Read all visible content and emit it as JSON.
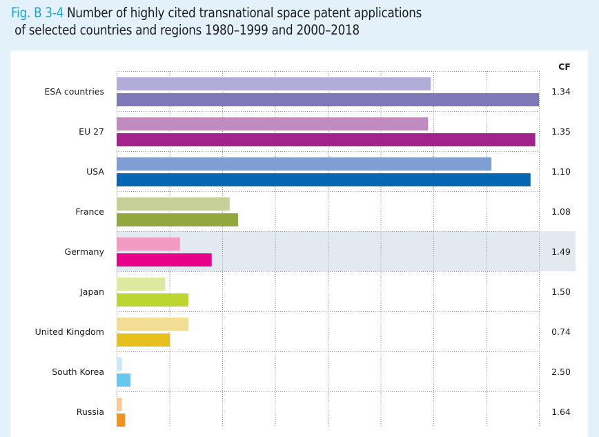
{
  "title": {
    "fig_label": "Fig. B 3-4",
    "line1": "Number of highly cited transnational space patent applications",
    "line2": "of selected countries and regions 1980–1999 and 2000–2018"
  },
  "colors": {
    "background": "#e3f1fa",
    "fig_label": "#1aa3d9",
    "highlight": "#e2e9f0"
  },
  "chart_data": {
    "type": "bar",
    "orientation": "horizontal",
    "title": "Number of highly cited transnational space patent applications of selected countries and regions 1980–1999 and 2000–2018",
    "xlabel": "",
    "ylabel": "",
    "value_unit": "gridline intervals (no axis tick labels shown)",
    "xlim": [
      0,
      8
    ],
    "grid": true,
    "cf_header": "CF",
    "highlighted_category": "Germany",
    "categories": [
      "ESA countries",
      "EU 27",
      "USA",
      "France",
      "Germany",
      "Japan",
      "United Kingdom",
      "South Korea",
      "Russia"
    ],
    "series": [
      {
        "name": "1980–1999",
        "values": [
          5.95,
          5.9,
          7.1,
          2.14,
          1.2,
          0.92,
          1.36,
          0.1,
          0.1
        ],
        "colors": [
          "#b1acd8",
          "#c28bbf",
          "#7f9fd4",
          "#c6cf98",
          "#f19bc4",
          "#dde99e",
          "#f3dc95",
          "#c9e8f8",
          "#f9c895"
        ]
      },
      {
        "name": "2000–2018",
        "values": [
          8.0,
          7.93,
          7.84,
          2.3,
          1.8,
          1.36,
          1.01,
          0.26,
          0.16
        ],
        "colors": [
          "#7f78b8",
          "#a3228c",
          "#0566b4",
          "#92a83f",
          "#e8008a",
          "#bcd530",
          "#e7c020",
          "#66c7f0",
          "#f39121"
        ]
      }
    ],
    "cf_values": [
      "1.34",
      "1.35",
      "1.10",
      "1.08",
      "1.49",
      "1.50",
      "0.74",
      "2.50",
      "1.64"
    ]
  }
}
